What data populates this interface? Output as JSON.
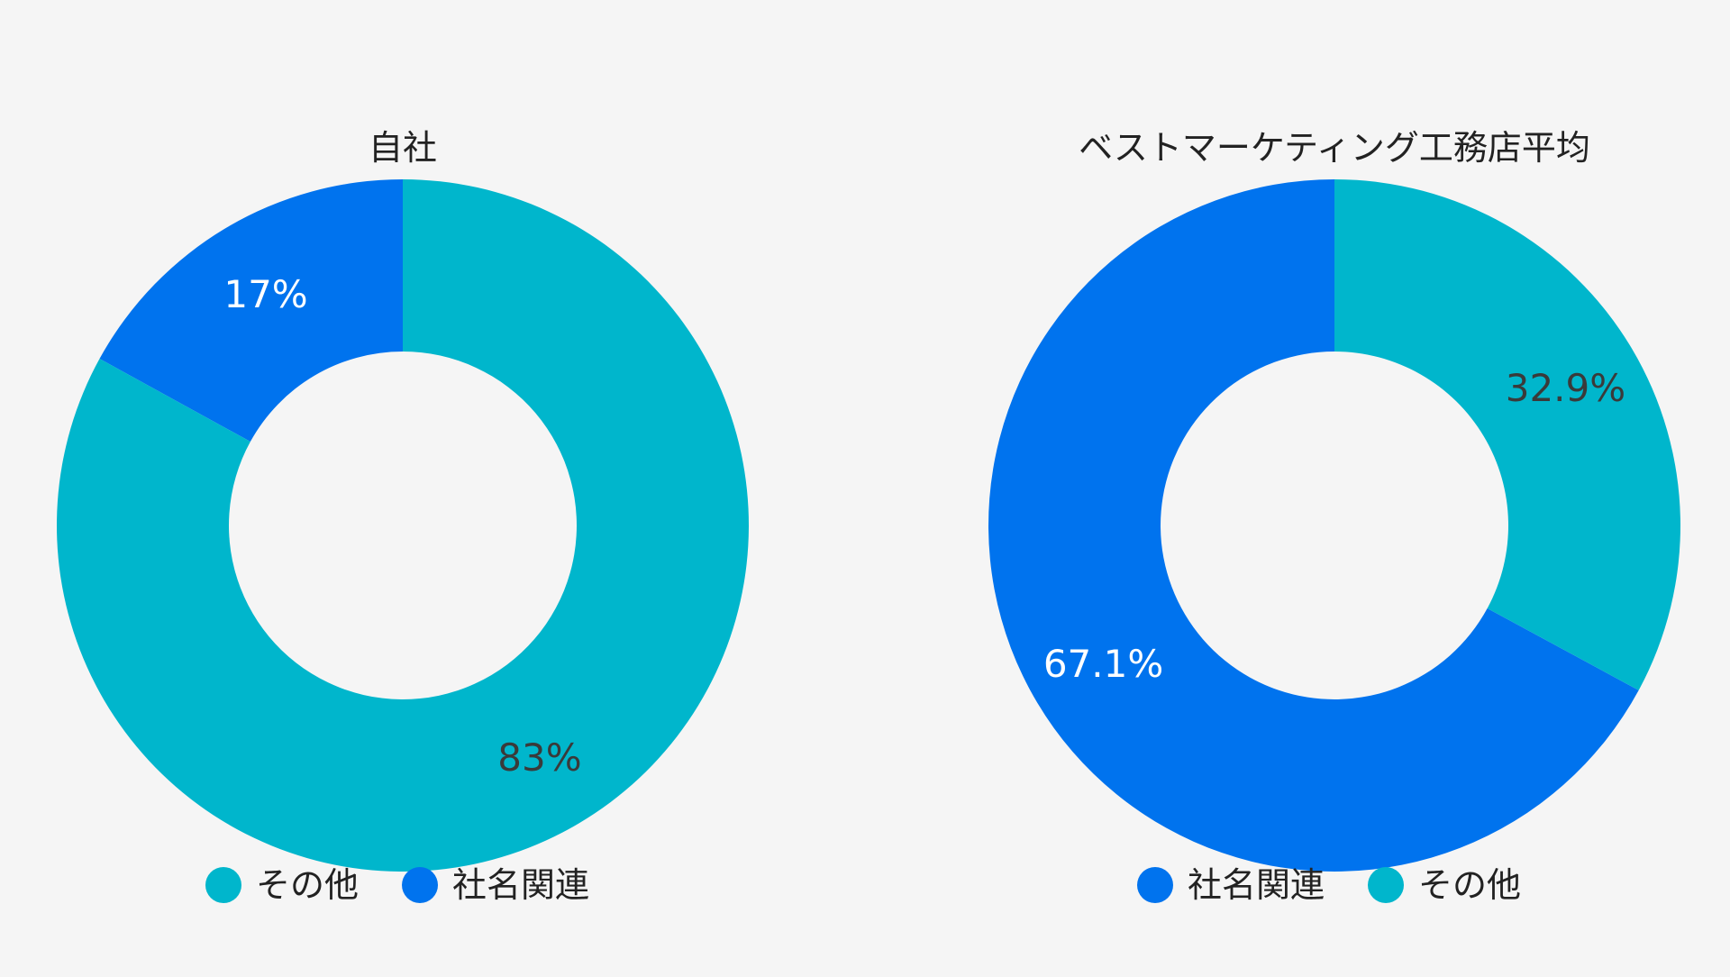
{
  "colors": {
    "background": "#f5f5f5",
    "company_related": "#0073ee",
    "other": "#00b6cc",
    "label_on_dark": "#ffffff",
    "label_on_light": "#3a3a3a"
  },
  "chart_data": [
    {
      "type": "pie",
      "donut": true,
      "title": "自社",
      "slices": [
        {
          "name": "社名関連",
          "value": 17,
          "label": "17%",
          "color": "#0073ee",
          "label_color": "#ffffff"
        },
        {
          "name": "その他",
          "value": 83,
          "label": "83%",
          "color": "#00b6cc",
          "label_color": "#3a3a3a"
        }
      ],
      "legend": [
        {
          "name": "その他",
          "color": "#00b6cc"
        },
        {
          "name": "社名関連",
          "color": "#0073ee"
        }
      ],
      "legend_position": "bottom"
    },
    {
      "type": "pie",
      "donut": true,
      "title": "ベストマーケティング工務店平均",
      "slices": [
        {
          "name": "社名関連",
          "value": 67.1,
          "label": "67.1%",
          "color": "#0073ee",
          "label_color": "#ffffff"
        },
        {
          "name": "その他",
          "value": 32.9,
          "label": "32.9%",
          "color": "#00b6cc",
          "label_color": "#3a3a3a"
        }
      ],
      "legend": [
        {
          "name": "社名関連",
          "color": "#0073ee"
        },
        {
          "name": "その他",
          "color": "#00b6cc"
        }
      ],
      "legend_position": "bottom"
    }
  ]
}
